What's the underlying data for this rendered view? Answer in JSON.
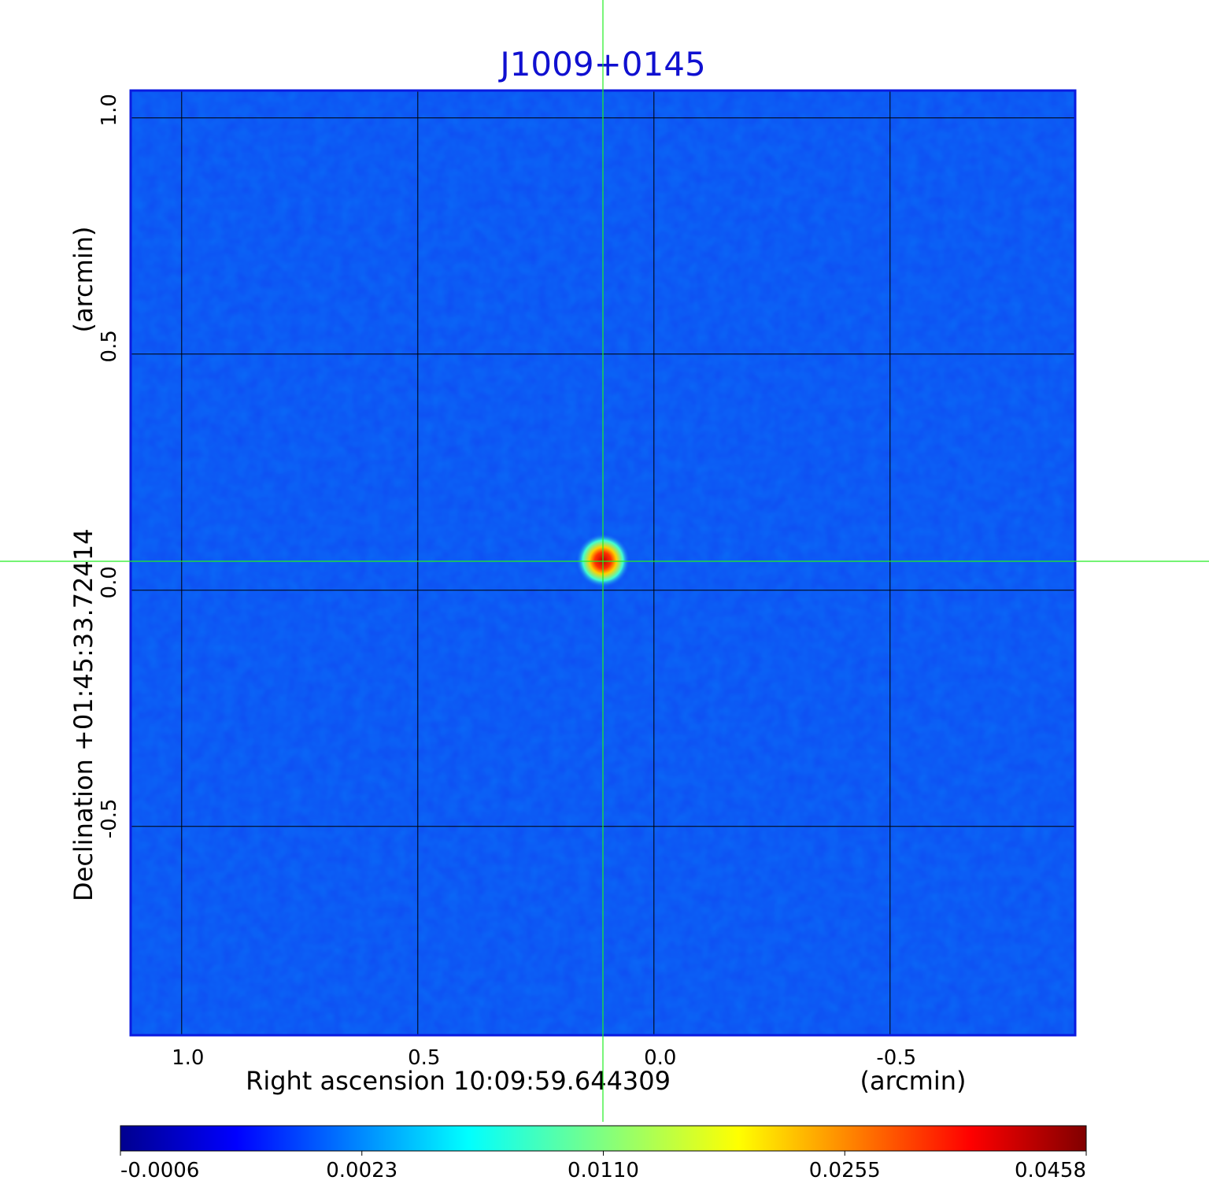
{
  "chart_data": {
    "type": "image",
    "title": "J1009+0145",
    "xlabel": "Right ascension  10:09:59.644309",
    "xunit": "(arcmin)",
    "ylabel": "Declination  +01:45:33.72414",
    "yunit": "(arcmin)",
    "xlim": [
      1.108,
      -0.892
    ],
    "ylim": [
      -0.942,
      1.058
    ],
    "xticks": [
      {
        "value": 1,
        "label": "1.0"
      },
      0.5,
      {
        "value": 0,
        "label": "0.0"
      },
      -0.5
    ],
    "yticks": [
      {
        "value": 1,
        "label": "1.0"
      },
      0.5,
      {
        "value": 0,
        "label": "0.0"
      },
      -0.5
    ],
    "grid": true,
    "colormap": "jet",
    "colorbar_ticks": [
      -0.0006,
      0.0023,
      {
        "value": 0.011,
        "label": "0.0110"
      },
      0.0255,
      0.0458
    ]
  }
}
